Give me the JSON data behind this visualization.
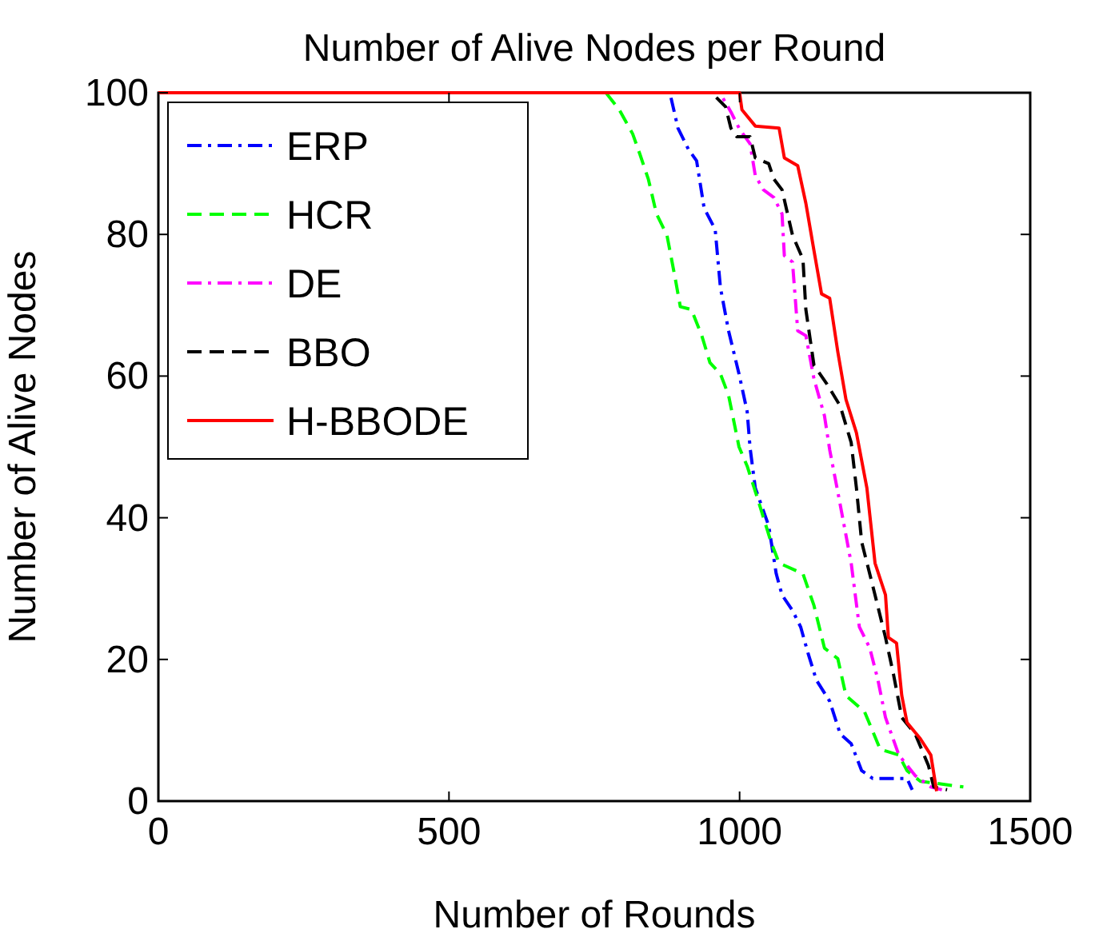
{
  "chart_data": {
    "type": "line",
    "title": "Number of Alive Nodes per Round",
    "xlabel": "Number of Rounds",
    "ylabel": "Number of Alive Nodes",
    "xlim": [
      0,
      1500
    ],
    "ylim": [
      0,
      100
    ],
    "xticks": [
      0,
      500,
      1000,
      1500
    ],
    "yticks": [
      0,
      20,
      40,
      60,
      80,
      100
    ],
    "grid": false,
    "legend": "top left",
    "marker": "none",
    "series": [
      {
        "name": "ERP",
        "color": "#0000ff",
        "line_style": "dashdot",
        "x": [
          0,
          880,
          894,
          912,
          926,
          939,
          958,
          967,
          981,
          999,
          1013,
          1018,
          1027,
          1050,
          1063,
          1073,
          1091,
          1105,
          1118,
          1132,
          1155,
          1173,
          1192,
          1210,
          1229,
          1288,
          1297
        ],
        "values": [
          100,
          100,
          95,
          92,
          90.4,
          83.7,
          80.7,
          72.5,
          66.4,
          60.3,
          55,
          49.9,
          44.2,
          38.9,
          32.1,
          29.1,
          26.9,
          24.6,
          20.8,
          17.1,
          14.1,
          9.5,
          8.1,
          4.3,
          3.2,
          3.2,
          1.6
        ]
      },
      {
        "name": "HCR",
        "color": "#00ff00",
        "line_style": "dashed",
        "x": [
          0,
          770,
          793,
          816,
          829,
          843,
          857,
          875,
          889,
          898,
          917,
          935,
          949,
          967,
          981,
          999,
          1013,
          1031,
          1054,
          1068,
          1109,
          1128,
          1146,
          1169,
          1183,
          1215,
          1242,
          1274,
          1288,
          1311,
          1385
        ],
        "values": [
          100,
          100,
          97.6,
          94.2,
          91.2,
          87.8,
          82.9,
          79.9,
          73.9,
          69.8,
          69.4,
          65.7,
          61.9,
          60.3,
          57.3,
          50,
          47.3,
          42.7,
          36.6,
          33.6,
          32.1,
          27.6,
          21.6,
          20.1,
          14.9,
          12.6,
          7.3,
          6.5,
          4.3,
          2.8,
          2
        ]
      },
      {
        "name": "DE",
        "color": "#ff00ff",
        "line_style": "dashdot",
        "x": [
          0,
          966,
          985,
          999,
          1018,
          1027,
          1041,
          1059,
          1073,
          1077,
          1091,
          1100,
          1114,
          1128,
          1146,
          1155,
          1173,
          1192,
          1206,
          1224,
          1238,
          1251,
          1274,
          1302,
          1329,
          1348
        ],
        "values": [
          100,
          100,
          97.3,
          95,
          92.8,
          88.3,
          86.3,
          85.2,
          82.9,
          77,
          76.1,
          66.4,
          65.7,
          59.6,
          54.4,
          49.6,
          41.9,
          33.6,
          24.6,
          21.6,
          17.1,
          11.8,
          6.5,
          3.6,
          2,
          1.6
        ]
      },
      {
        "name": "BBO",
        "color": "#000000",
        "line_style": "dashed",
        "x": [
          0,
          952,
          976,
          985,
          995,
          1018,
          1027,
          1050,
          1059,
          1073,
          1091,
          1109,
          1114,
          1128,
          1150,
          1173,
          1192,
          1201,
          1210,
          1233,
          1251,
          1265,
          1279,
          1302,
          1325,
          1334,
          1357
        ],
        "values": [
          100,
          100,
          98,
          95,
          93.8,
          93.8,
          90.8,
          90,
          87.8,
          86.3,
          79.9,
          76.5,
          69.4,
          61.5,
          58.9,
          55.8,
          50.6,
          44.2,
          36.6,
          29.1,
          23.1,
          17.8,
          11.8,
          9.5,
          5,
          2,
          1.6
        ]
      },
      {
        "name": "H-BBODE",
        "color": "#ff0000",
        "line_style": "solid",
        "x": [
          0,
          1000,
          1004,
          1027,
          1068,
          1077,
          1100,
          1114,
          1128,
          1141,
          1155,
          1169,
          1183,
          1201,
          1219,
          1233,
          1251,
          1256,
          1270,
          1279,
          1288,
          1311,
          1329,
          1339
        ],
        "values": [
          100,
          100,
          97.6,
          95.3,
          95,
          90.8,
          89.7,
          84.4,
          77.7,
          71.6,
          71,
          63.4,
          56.7,
          52,
          44.2,
          33.6,
          29.1,
          23.1,
          22.3,
          14.9,
          11.1,
          8.8,
          6.5,
          1.4
        ]
      }
    ]
  }
}
